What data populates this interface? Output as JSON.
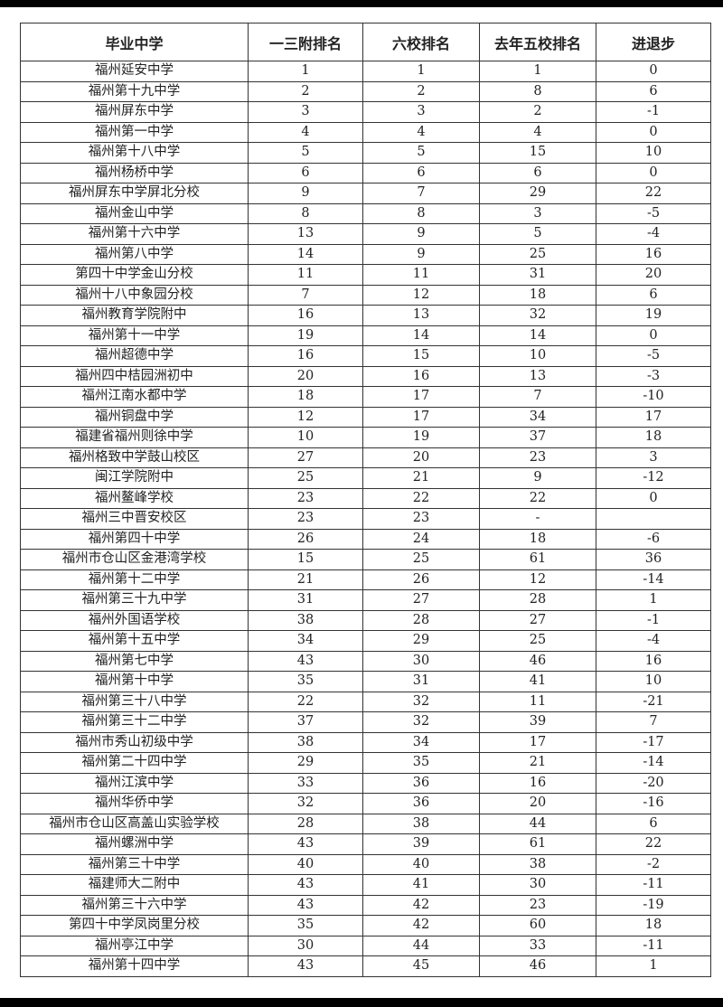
{
  "headers": [
    "毕业中学",
    "一三附排名",
    "六校排名",
    "去年五校排名",
    "进退步"
  ],
  "rows": [
    [
      "福州延安中学",
      "1",
      "1",
      "1",
      "0"
    ],
    [
      "福州第十九中学",
      "2",
      "2",
      "8",
      "6"
    ],
    [
      "福州屏东中学",
      "3",
      "3",
      "2",
      "-1"
    ],
    [
      "福州第一中学",
      "4",
      "4",
      "4",
      "0"
    ],
    [
      "福州第十八中学",
      "5",
      "5",
      "15",
      "10"
    ],
    [
      "福州杨桥中学",
      "6",
      "6",
      "6",
      "0"
    ],
    [
      "福州屏东中学屏北分校",
      "9",
      "7",
      "29",
      "22"
    ],
    [
      "福州金山中学",
      "8",
      "8",
      "3",
      "-5"
    ],
    [
      "福州第十六中学",
      "13",
      "9",
      "5",
      "-4"
    ],
    [
      "福州第八中学",
      "14",
      "9",
      "25",
      "16"
    ],
    [
      "第四十中学金山分校",
      "11",
      "11",
      "31",
      "20"
    ],
    [
      "福州十八中象园分校",
      "7",
      "12",
      "18",
      "6"
    ],
    [
      "福州教育学院附中",
      "16",
      "13",
      "32",
      "19"
    ],
    [
      "福州第十一中学",
      "19",
      "14",
      "14",
      "0"
    ],
    [
      "福州超德中学",
      "16",
      "15",
      "10",
      "-5"
    ],
    [
      "福州四中桔园洲初中",
      "20",
      "16",
      "13",
      "-3"
    ],
    [
      "福州江南水都中学",
      "18",
      "17",
      "7",
      "-10"
    ],
    [
      "福州铜盘中学",
      "12",
      "17",
      "34",
      "17"
    ],
    [
      "福建省福州则徐中学",
      "10",
      "19",
      "37",
      "18"
    ],
    [
      "福州格致中学鼓山校区",
      "27",
      "20",
      "23",
      "3"
    ],
    [
      "闽江学院附中",
      "25",
      "21",
      "9",
      "-12"
    ],
    [
      "福州鳌峰学校",
      "23",
      "22",
      "22",
      "0"
    ],
    [
      "福州三中晋安校区",
      "23",
      "23",
      "-",
      ""
    ],
    [
      "福州第四十中学",
      "26",
      "24",
      "18",
      "-6"
    ],
    [
      "福州市仓山区金港湾学校",
      "15",
      "25",
      "61",
      "36"
    ],
    [
      "福州第十二中学",
      "21",
      "26",
      "12",
      "-14"
    ],
    [
      "福州第三十九中学",
      "31",
      "27",
      "28",
      "1"
    ],
    [
      "福州外国语学校",
      "38",
      "28",
      "27",
      "-1"
    ],
    [
      "福州第十五中学",
      "34",
      "29",
      "25",
      "-4"
    ],
    [
      "福州第七中学",
      "43",
      "30",
      "46",
      "16"
    ],
    [
      "福州第十中学",
      "35",
      "31",
      "41",
      "10"
    ],
    [
      "福州第三十八中学",
      "22",
      "32",
      "11",
      "-21"
    ],
    [
      "福州第三十二中学",
      "37",
      "32",
      "39",
      "7"
    ],
    [
      "福州市秀山初级中学",
      "38",
      "34",
      "17",
      "-17"
    ],
    [
      "福州第二十四中学",
      "29",
      "35",
      "21",
      "-14"
    ],
    [
      "福州江滨中学",
      "33",
      "36",
      "16",
      "-20"
    ],
    [
      "福州华侨中学",
      "32",
      "36",
      "20",
      "-16"
    ],
    [
      "福州市仓山区高盖山实验学校",
      "28",
      "38",
      "44",
      "6"
    ],
    [
      "福州螺洲中学",
      "43",
      "39",
      "61",
      "22"
    ],
    [
      "福州第三十中学",
      "40",
      "40",
      "38",
      "-2"
    ],
    [
      "福建师大二附中",
      "43",
      "41",
      "30",
      "-11"
    ],
    [
      "福州第三十六中学",
      "43",
      "42",
      "23",
      "-19"
    ],
    [
      "第四十中学凤岗里分校",
      "35",
      "42",
      "60",
      "18"
    ],
    [
      "福州亭江中学",
      "30",
      "44",
      "33",
      "-11"
    ],
    [
      "福州第十四中学",
      "43",
      "45",
      "46",
      "1"
    ]
  ]
}
